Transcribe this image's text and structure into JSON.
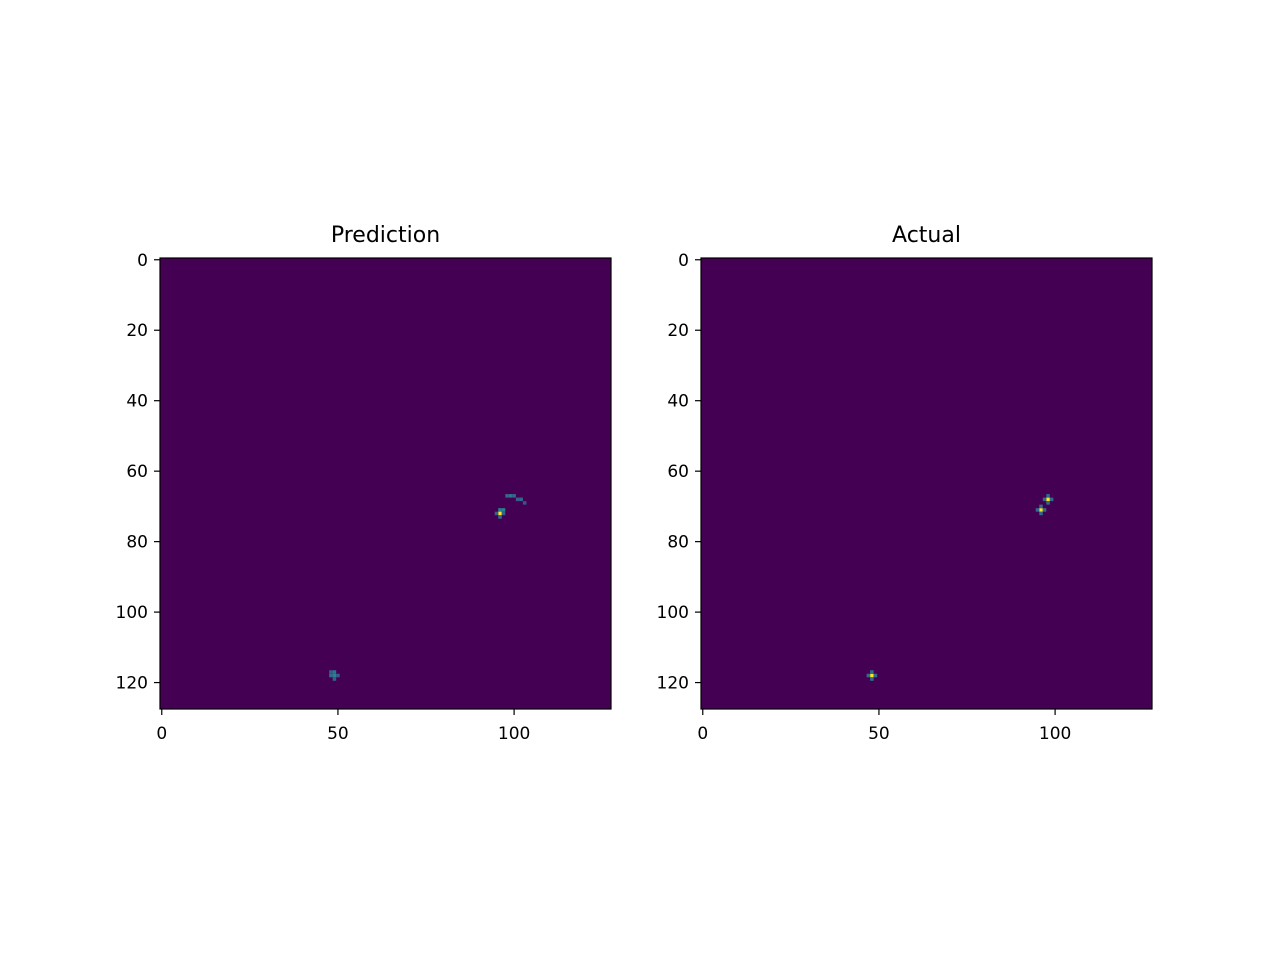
{
  "chart_data": [
    {
      "type": "heatmap",
      "title": "Prediction",
      "xlabel": "",
      "ylabel": "",
      "xlim": [
        0,
        128
      ],
      "ylim": [
        128,
        0
      ],
      "xticks": [
        0,
        50,
        100
      ],
      "yticks": [
        0,
        20,
        40,
        60,
        80,
        100,
        120
      ],
      "colormap": "viridis",
      "grid": false,
      "background_value": 0.0,
      "points": [
        {
          "x": 98,
          "y": 67,
          "value": 0.35
        },
        {
          "x": 99,
          "y": 67,
          "value": 0.4
        },
        {
          "x": 100,
          "y": 67,
          "value": 0.35
        },
        {
          "x": 101,
          "y": 68,
          "value": 0.3
        },
        {
          "x": 102,
          "y": 68,
          "value": 0.35
        },
        {
          "x": 103,
          "y": 69,
          "value": 0.25
        },
        {
          "x": 96,
          "y": 71,
          "value": 0.45
        },
        {
          "x": 97,
          "y": 71,
          "value": 0.45
        },
        {
          "x": 96,
          "y": 72,
          "value": 1.0
        },
        {
          "x": 95,
          "y": 72,
          "value": 0.3
        },
        {
          "x": 97,
          "y": 72,
          "value": 0.3
        },
        {
          "x": 96,
          "y": 73,
          "value": 0.35
        },
        {
          "x": 48,
          "y": 117,
          "value": 0.3
        },
        {
          "x": 49,
          "y": 117,
          "value": 0.4
        },
        {
          "x": 48,
          "y": 118,
          "value": 0.35
        },
        {
          "x": 49,
          "y": 118,
          "value": 0.45
        },
        {
          "x": 50,
          "y": 118,
          "value": 0.3
        },
        {
          "x": 49,
          "y": 119,
          "value": 0.3
        }
      ]
    },
    {
      "type": "heatmap",
      "title": "Actual",
      "xlabel": "",
      "ylabel": "",
      "xlim": [
        0,
        128
      ],
      "ylim": [
        128,
        0
      ],
      "xticks": [
        0,
        50,
        100
      ],
      "yticks": [
        0,
        20,
        40,
        60,
        80,
        100,
        120
      ],
      "colormap": "viridis",
      "grid": false,
      "background_value": 0.0,
      "points": [
        {
          "x": 98,
          "y": 68,
          "value": 1.0
        },
        {
          "x": 97,
          "y": 68,
          "value": 0.35
        },
        {
          "x": 99,
          "y": 68,
          "value": 0.35
        },
        {
          "x": 98,
          "y": 67,
          "value": 0.35
        },
        {
          "x": 98,
          "y": 69,
          "value": 0.35
        },
        {
          "x": 96,
          "y": 71,
          "value": 1.0
        },
        {
          "x": 95,
          "y": 71,
          "value": 0.35
        },
        {
          "x": 97,
          "y": 71,
          "value": 0.35
        },
        {
          "x": 96,
          "y": 70,
          "value": 0.35
        },
        {
          "x": 96,
          "y": 72,
          "value": 0.35
        },
        {
          "x": 48,
          "y": 118,
          "value": 1.0
        },
        {
          "x": 47,
          "y": 118,
          "value": 0.35
        },
        {
          "x": 49,
          "y": 118,
          "value": 0.35
        },
        {
          "x": 48,
          "y": 117,
          "value": 0.35
        },
        {
          "x": 48,
          "y": 119,
          "value": 0.35
        }
      ]
    }
  ]
}
